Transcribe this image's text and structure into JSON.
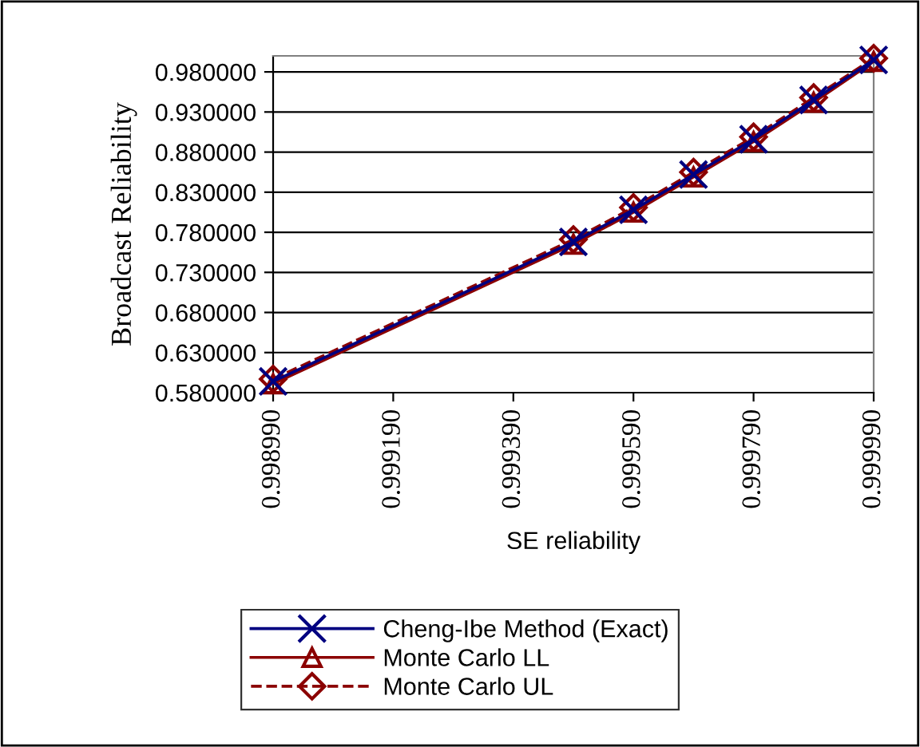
{
  "chart_data": {
    "type": "line",
    "xlabel": "SE reliability",
    "ylabel": "Broadcast Reliability",
    "x": [
      0.99899,
      0.99949,
      0.99959,
      0.99969,
      0.99979,
      0.99989,
      0.99999
    ],
    "series": [
      {
        "name": "Cheng-Ibe Method (Exact)",
        "color": "#000080",
        "marker": "cross",
        "line_style": "solid",
        "values": [
          0.594,
          0.768,
          0.808,
          0.852,
          0.896,
          0.945,
          0.995
        ]
      },
      {
        "name": "Monte Carlo LL",
        "color": "#8b0000",
        "marker": "triangle",
        "line_style": "solid",
        "values": [
          0.591,
          0.765,
          0.805,
          0.849,
          0.893,
          0.942,
          0.993
        ]
      },
      {
        "name": "Monte Carlo UL",
        "color": "#8b0000",
        "marker": "diamond",
        "line_style": "dashed",
        "values": [
          0.597,
          0.771,
          0.811,
          0.855,
          0.899,
          0.948,
          0.997
        ]
      }
    ],
    "xlim": [
      0.99899,
      0.99999
    ],
    "xticks": [
      {
        "value": 0.99899,
        "label": "0.998990"
      },
      {
        "value": 0.99919,
        "label": "0.999190"
      },
      {
        "value": 0.99939,
        "label": "0.999390"
      },
      {
        "value": 0.99959,
        "label": "0.999590"
      },
      {
        "value": 0.99979,
        "label": "0.999790"
      },
      {
        "value": 0.99999,
        "label": "0.999990"
      }
    ],
    "ylim": [
      0.58,
      1.0
    ],
    "yticks": [
      {
        "value": 0.58,
        "label": "0.580000"
      },
      {
        "value": 0.63,
        "label": "0.630000"
      },
      {
        "value": 0.68,
        "label": "0.680000"
      },
      {
        "value": 0.73,
        "label": "0.730000"
      },
      {
        "value": 0.78,
        "label": "0.780000"
      },
      {
        "value": 0.83,
        "label": "0.830000"
      },
      {
        "value": 0.88,
        "label": "0.880000"
      },
      {
        "value": 0.93,
        "label": "0.930000"
      },
      {
        "value": 0.98,
        "label": "0.980000"
      }
    ],
    "grid": "y",
    "legend": "bottom"
  }
}
